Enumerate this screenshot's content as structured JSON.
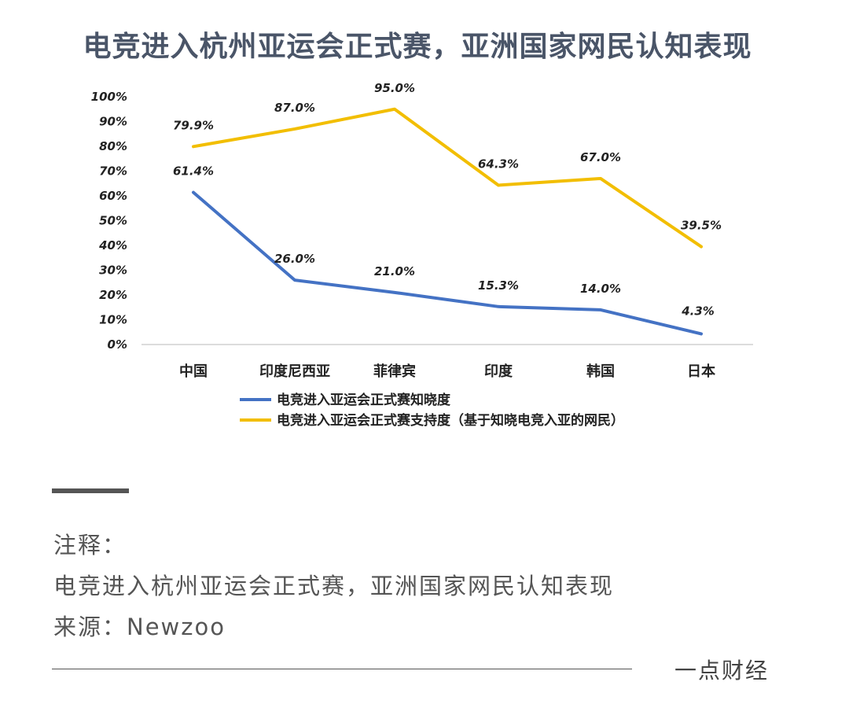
{
  "chart_data": {
    "type": "line",
    "title": "电竞进入杭州亚运会正式赛，亚洲国家网民认知表现",
    "categories": [
      "中国",
      "印度尼西亚",
      "菲律宾",
      "印度",
      "韩国",
      "日本"
    ],
    "series": [
      {
        "name": "电竞进入亚运会正式赛知晓度",
        "values": [
          61.4,
          26.0,
          21.0,
          15.3,
          14.0,
          4.3
        ],
        "labels": [
          "61.4%",
          "26.0%",
          "21.0%",
          "15.3%",
          "14.0%",
          "4.3%"
        ],
        "color": "#4472C4"
      },
      {
        "name": "电竞进入亚运会正式赛支持度（基于知晓电竞入亚的网民）",
        "values": [
          79.9,
          87.0,
          95.0,
          64.3,
          67.0,
          39.5
        ],
        "labels": [
          "79.9%",
          "87.0%",
          "95.0%",
          "64.3%",
          "67.0%",
          "39.5%"
        ],
        "color": "#F2BE00"
      }
    ],
    "y_ticks": [
      "0%",
      "10%",
      "20%",
      "30%",
      "40%",
      "50%",
      "60%",
      "70%",
      "80%",
      "90%",
      "100%"
    ],
    "ylim": [
      0,
      100
    ],
    "legend_position": "bottom",
    "grid": false
  },
  "notes": {
    "heading": "注释：",
    "line1": "电竞进入杭州亚运会正式赛，亚洲国家网民认知表现",
    "line2": "来源：Newzoo"
  },
  "brand": "一点财经"
}
